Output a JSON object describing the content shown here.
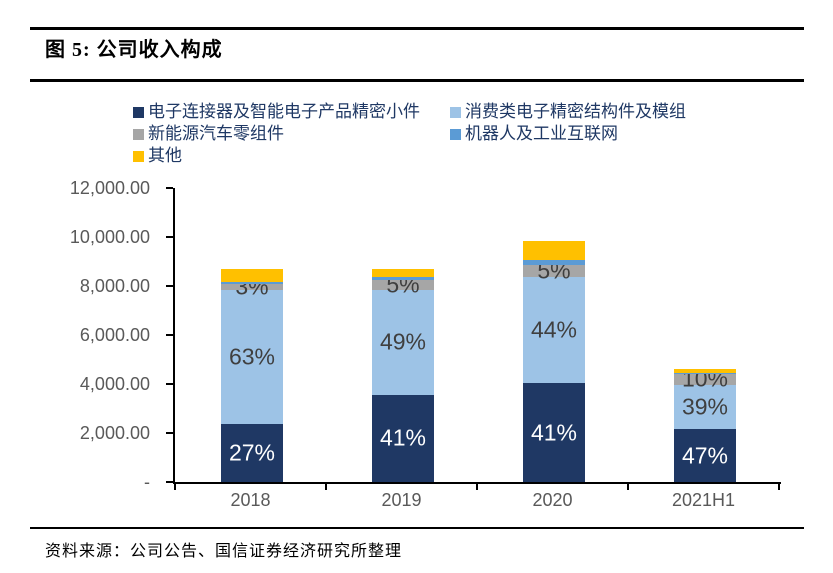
{
  "header": {
    "title": "图 5: 公司收入构成"
  },
  "chart_data": {
    "type": "bar",
    "stacked": true,
    "title": "公司收入构成",
    "categories": [
      "2018",
      "2019",
      "2020",
      "2021H1"
    ],
    "totals": [
      8700,
      8700,
      9850,
      4600
    ],
    "ylim": [
      0,
      12000
    ],
    "y_tick_step": 2000,
    "y_ticks": [
      "12,000.00",
      "10,000.00",
      "8,000.00",
      "6,000.00",
      "4,000.00",
      "2,000.00",
      "-"
    ],
    "grid": false,
    "legend_position": "top",
    "series": [
      {
        "name": "电子连接器及智能电子产品精密小件",
        "color": "#1F3864",
        "label_color": "#FFFFFF",
        "pct": [
          27,
          41,
          41,
          47
        ],
        "labels": [
          "27%",
          "41%",
          "41%",
          "47%"
        ]
      },
      {
        "name": "消费类电子精密结构件及模组",
        "color": "#9DC3E6",
        "label_color": "#3F3F3F",
        "pct": [
          63,
          49,
          44,
          39
        ],
        "labels": [
          "63%",
          "49%",
          "44%",
          "39%"
        ]
      },
      {
        "name": "新能源汽车零组件",
        "color": "#A6A6A6",
        "label_color": "#3F3F3F",
        "pct": [
          3,
          5,
          5,
          10
        ],
        "labels": [
          "3%",
          "5%",
          "5%",
          "10%"
        ]
      },
      {
        "name": "机器人及工业互联网",
        "color": "#5B9BD5",
        "label_color": "",
        "pct": [
          1,
          1,
          2,
          1
        ],
        "labels": [
          "",
          "",
          "",
          ""
        ]
      },
      {
        "name": "其他",
        "color": "#FFC000",
        "label_color": "",
        "pct": [
          6,
          4,
          8,
          3
        ],
        "labels": [
          "",
          "",
          "",
          ""
        ]
      }
    ],
    "axis_text_color": "#595959",
    "axis_line_color": "#000000"
  },
  "footer": {
    "source": "资料来源：公司公告、国信证券经济研究所整理"
  }
}
